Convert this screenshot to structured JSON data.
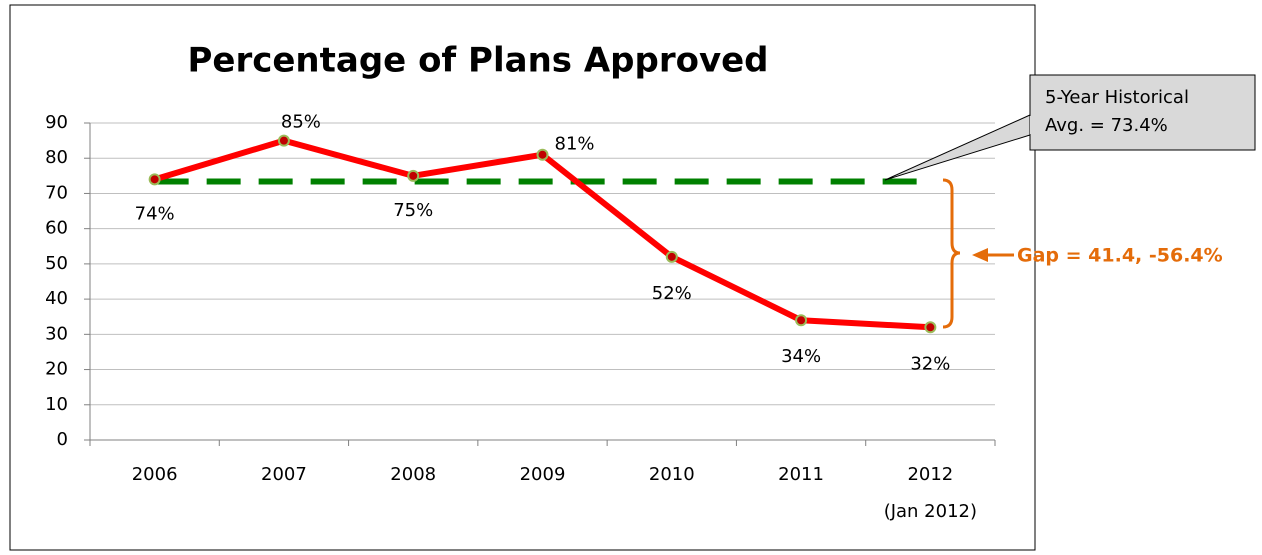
{
  "chart_data": {
    "type": "line",
    "title": "Percentage of Plans Approved",
    "categories": [
      "2006",
      "2007",
      "2008",
      "2009",
      "2010",
      "2011",
      "2012"
    ],
    "x_note": "(Jan 2012)",
    "series": [
      {
        "name": "Percentage of Plans Approved",
        "color": "#ff0000",
        "values": [
          74,
          85,
          75,
          81,
          52,
          34,
          32
        ],
        "value_labels": [
          "74%",
          "85%",
          "75%",
          "81%",
          "52%",
          "34%",
          "32%"
        ]
      }
    ],
    "reference_line": {
      "value": 73.4,
      "color": "#008000"
    },
    "callout": [
      "5-Year Historical",
      "Avg. = 73.4%"
    ],
    "gap_annotation": "Gap = 41.4, -56.4%",
    "ylim": [
      0,
      90
    ],
    "yticks": [
      0,
      10,
      20,
      30,
      40,
      50,
      60,
      70,
      80,
      90
    ],
    "grid": true
  }
}
